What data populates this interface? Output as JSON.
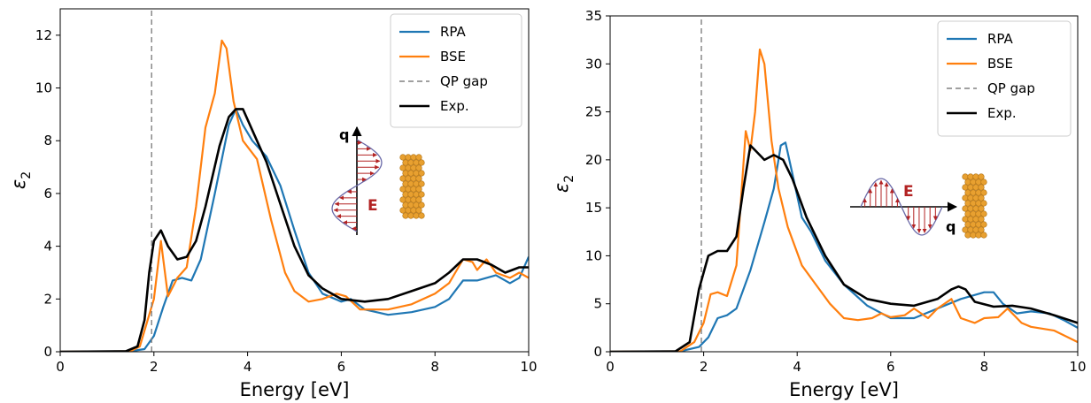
{
  "chart_data": [
    {
      "type": "line",
      "xlabel": "Energy [eV]",
      "ylabel": "ε2",
      "xlim": [
        0,
        10
      ],
      "ylim": [
        0,
        13
      ],
      "xticks": [
        0,
        2,
        4,
        6,
        8,
        10
      ],
      "yticks": [
        0,
        2,
        4,
        6,
        8,
        10,
        12
      ],
      "legend_position": "top-right",
      "inset_labels": {
        "q": "q",
        "E": "E"
      },
      "inset_orientation": "q vertical, E in-plane",
      "series": [
        {
          "name": "RPA",
          "color": "#1f77b4",
          "style": "solid",
          "points": [
            [
              0,
              0
            ],
            [
              1.5,
              0.02
            ],
            [
              1.8,
              0.1
            ],
            [
              2.0,
              0.6
            ],
            [
              2.2,
              1.7
            ],
            [
              2.4,
              2.7
            ],
            [
              2.6,
              2.8
            ],
            [
              2.8,
              2.7
            ],
            [
              3.0,
              3.5
            ],
            [
              3.3,
              6.0
            ],
            [
              3.6,
              8.6
            ],
            [
              3.75,
              9.2
            ],
            [
              3.9,
              8.6
            ],
            [
              4.1,
              8.0
            ],
            [
              4.4,
              7.4
            ],
            [
              4.7,
              6.3
            ],
            [
              5.0,
              4.6
            ],
            [
              5.3,
              3.0
            ],
            [
              5.6,
              2.2
            ],
            [
              6.0,
              1.9
            ],
            [
              6.2,
              2.0
            ],
            [
              6.5,
              1.6
            ],
            [
              7.0,
              1.4
            ],
            [
              7.5,
              1.5
            ],
            [
              8.0,
              1.7
            ],
            [
              8.3,
              2.0
            ],
            [
              8.6,
              2.7
            ],
            [
              8.9,
              2.7
            ],
            [
              9.1,
              2.8
            ],
            [
              9.3,
              2.9
            ],
            [
              9.6,
              2.6
            ],
            [
              9.8,
              2.8
            ],
            [
              10.0,
              3.6
            ]
          ]
        },
        {
          "name": "BSE",
          "color": "#ff7f0e",
          "style": "solid",
          "points": [
            [
              0,
              0
            ],
            [
              1.5,
              0.02
            ],
            [
              1.7,
              0.2
            ],
            [
              1.9,
              1.4
            ],
            [
              2.0,
              2.0
            ],
            [
              2.15,
              4.2
            ],
            [
              2.3,
              2.1
            ],
            [
              2.5,
              2.8
            ],
            [
              2.7,
              3.2
            ],
            [
              2.9,
              5.5
            ],
            [
              3.1,
              8.5
            ],
            [
              3.3,
              9.8
            ],
            [
              3.45,
              11.8
            ],
            [
              3.55,
              11.5
            ],
            [
              3.7,
              9.5
            ],
            [
              3.9,
              8.0
            ],
            [
              4.2,
              7.3
            ],
            [
              4.5,
              5.0
            ],
            [
              4.8,
              3.0
            ],
            [
              5.0,
              2.3
            ],
            [
              5.3,
              1.9
            ],
            [
              5.6,
              2.0
            ],
            [
              5.9,
              2.2
            ],
            [
              6.1,
              2.1
            ],
            [
              6.4,
              1.6
            ],
            [
              7.0,
              1.6
            ],
            [
              7.5,
              1.8
            ],
            [
              8.0,
              2.2
            ],
            [
              8.3,
              2.6
            ],
            [
              8.6,
              3.5
            ],
            [
              8.8,
              3.4
            ],
            [
              8.9,
              3.1
            ],
            [
              9.1,
              3.5
            ],
            [
              9.3,
              3.0
            ],
            [
              9.6,
              2.8
            ],
            [
              9.8,
              3.0
            ],
            [
              10.0,
              2.8
            ]
          ]
        },
        {
          "name": "QP gap",
          "color": "#808080",
          "style": "dashed",
          "points": [
            [
              1.95,
              0
            ],
            [
              1.95,
              13
            ]
          ]
        },
        {
          "name": "Exp.",
          "color": "#000000",
          "style": "solid",
          "points": [
            [
              0,
              0
            ],
            [
              1.4,
              0.02
            ],
            [
              1.65,
              0.2
            ],
            [
              1.8,
              1.2
            ],
            [
              1.9,
              3.0
            ],
            [
              2.0,
              4.2
            ],
            [
              2.15,
              4.6
            ],
            [
              2.3,
              4.0
            ],
            [
              2.5,
              3.5
            ],
            [
              2.7,
              3.6
            ],
            [
              2.9,
              4.2
            ],
            [
              3.1,
              5.5
            ],
            [
              3.4,
              7.8
            ],
            [
              3.6,
              8.9
            ],
            [
              3.75,
              9.2
            ],
            [
              3.9,
              9.2
            ],
            [
              4.1,
              8.4
            ],
            [
              4.4,
              7.2
            ],
            [
              4.7,
              5.6
            ],
            [
              5.0,
              4.0
            ],
            [
              5.3,
              2.9
            ],
            [
              5.6,
              2.4
            ],
            [
              6.0,
              2.0
            ],
            [
              6.5,
              1.9
            ],
            [
              7.0,
              2.0
            ],
            [
              7.5,
              2.3
            ],
            [
              8.0,
              2.6
            ],
            [
              8.3,
              3.0
            ],
            [
              8.6,
              3.5
            ],
            [
              8.9,
              3.5
            ],
            [
              9.2,
              3.3
            ],
            [
              9.5,
              3.0
            ],
            [
              9.8,
              3.2
            ],
            [
              10.0,
              3.2
            ]
          ]
        }
      ]
    },
    {
      "type": "line",
      "xlabel": "Energy [eV]",
      "ylabel": "ε2",
      "xlim": [
        0,
        10
      ],
      "ylim": [
        0,
        35
      ],
      "xticks": [
        0,
        2,
        4,
        6,
        8,
        10
      ],
      "yticks": [
        0,
        5,
        10,
        15,
        20,
        25,
        30,
        35
      ],
      "legend_position": "top-right",
      "inset_labels": {
        "q": "q",
        "E": "E"
      },
      "inset_orientation": "q horizontal, E out-of-plane",
      "series": [
        {
          "name": "RPA",
          "color": "#1f77b4",
          "style": "solid",
          "points": [
            [
              0,
              0
            ],
            [
              1.5,
              0.05
            ],
            [
              1.9,
              0.5
            ],
            [
              2.1,
              1.5
            ],
            [
              2.3,
              3.5
            ],
            [
              2.5,
              3.8
            ],
            [
              2.7,
              4.5
            ],
            [
              3.0,
              8.5
            ],
            [
              3.3,
              13.5
            ],
            [
              3.5,
              17.0
            ],
            [
              3.65,
              21.5
            ],
            [
              3.75,
              21.8
            ],
            [
              3.9,
              18.5
            ],
            [
              4.1,
              14.0
            ],
            [
              4.3,
              12.5
            ],
            [
              4.6,
              9.5
            ],
            [
              5.0,
              7.0
            ],
            [
              5.5,
              4.8
            ],
            [
              6.0,
              3.5
            ],
            [
              6.5,
              3.5
            ],
            [
              7.0,
              4.5
            ],
            [
              7.5,
              5.5
            ],
            [
              8.0,
              6.2
            ],
            [
              8.2,
              6.2
            ],
            [
              8.4,
              5.0
            ],
            [
              8.7,
              4.0
            ],
            [
              9.0,
              4.2
            ],
            [
              9.4,
              4.0
            ],
            [
              9.7,
              3.3
            ],
            [
              10.0,
              2.5
            ]
          ]
        },
        {
          "name": "BSE",
          "color": "#ff7f0e",
          "style": "solid",
          "points": [
            [
              0,
              0
            ],
            [
              1.5,
              0.05
            ],
            [
              1.8,
              1.0
            ],
            [
              2.0,
              3.0
            ],
            [
              2.15,
              6.0
            ],
            [
              2.3,
              6.2
            ],
            [
              2.5,
              5.8
            ],
            [
              2.7,
              9.0
            ],
            [
              2.9,
              23.0
            ],
            [
              3.0,
              21.0
            ],
            [
              3.1,
              25.0
            ],
            [
              3.2,
              31.5
            ],
            [
              3.3,
              30.0
            ],
            [
              3.45,
              22.0
            ],
            [
              3.6,
              17.0
            ],
            [
              3.8,
              13.0
            ],
            [
              4.1,
              9.0
            ],
            [
              4.4,
              7.0
            ],
            [
              4.7,
              5.0
            ],
            [
              5.0,
              3.5
            ],
            [
              5.3,
              3.3
            ],
            [
              5.6,
              3.5
            ],
            [
              5.8,
              4.0
            ],
            [
              6.0,
              3.6
            ],
            [
              6.3,
              3.8
            ],
            [
              6.5,
              4.5
            ],
            [
              6.8,
              3.5
            ],
            [
              7.0,
              4.5
            ],
            [
              7.3,
              5.5
            ],
            [
              7.5,
              3.5
            ],
            [
              7.8,
              3.0
            ],
            [
              8.0,
              3.5
            ],
            [
              8.3,
              3.6
            ],
            [
              8.5,
              4.5
            ],
            [
              8.8,
              3.0
            ],
            [
              9.0,
              2.6
            ],
            [
              9.5,
              2.2
            ],
            [
              10.0,
              1.0
            ]
          ]
        },
        {
          "name": "QP gap",
          "color": "#808080",
          "style": "dashed",
          "points": [
            [
              1.95,
              0
            ],
            [
              1.95,
              35
            ]
          ]
        },
        {
          "name": "Exp.",
          "color": "#000000",
          "style": "solid",
          "points": [
            [
              0,
              0
            ],
            [
              1.4,
              0.05
            ],
            [
              1.7,
              1.0
            ],
            [
              1.9,
              6.5
            ],
            [
              2.1,
              10.0
            ],
            [
              2.3,
              10.5
            ],
            [
              2.5,
              10.5
            ],
            [
              2.7,
              12.0
            ],
            [
              2.85,
              17.0
            ],
            [
              3.0,
              21.5
            ],
            [
              3.1,
              21.0
            ],
            [
              3.3,
              20.0
            ],
            [
              3.5,
              20.5
            ],
            [
              3.7,
              20.0
            ],
            [
              3.9,
              18.0
            ],
            [
              4.2,
              14.0
            ],
            [
              4.6,
              10.0
            ],
            [
              5.0,
              7.0
            ],
            [
              5.5,
              5.5
            ],
            [
              6.0,
              5.0
            ],
            [
              6.5,
              4.8
            ],
            [
              7.0,
              5.5
            ],
            [
              7.3,
              6.5
            ],
            [
              7.45,
              6.8
            ],
            [
              7.6,
              6.5
            ],
            [
              7.8,
              5.2
            ],
            [
              8.2,
              4.7
            ],
            [
              8.6,
              4.8
            ],
            [
              9.0,
              4.5
            ],
            [
              9.5,
              3.8
            ],
            [
              10.0,
              3.0
            ]
          ]
        }
      ]
    }
  ]
}
